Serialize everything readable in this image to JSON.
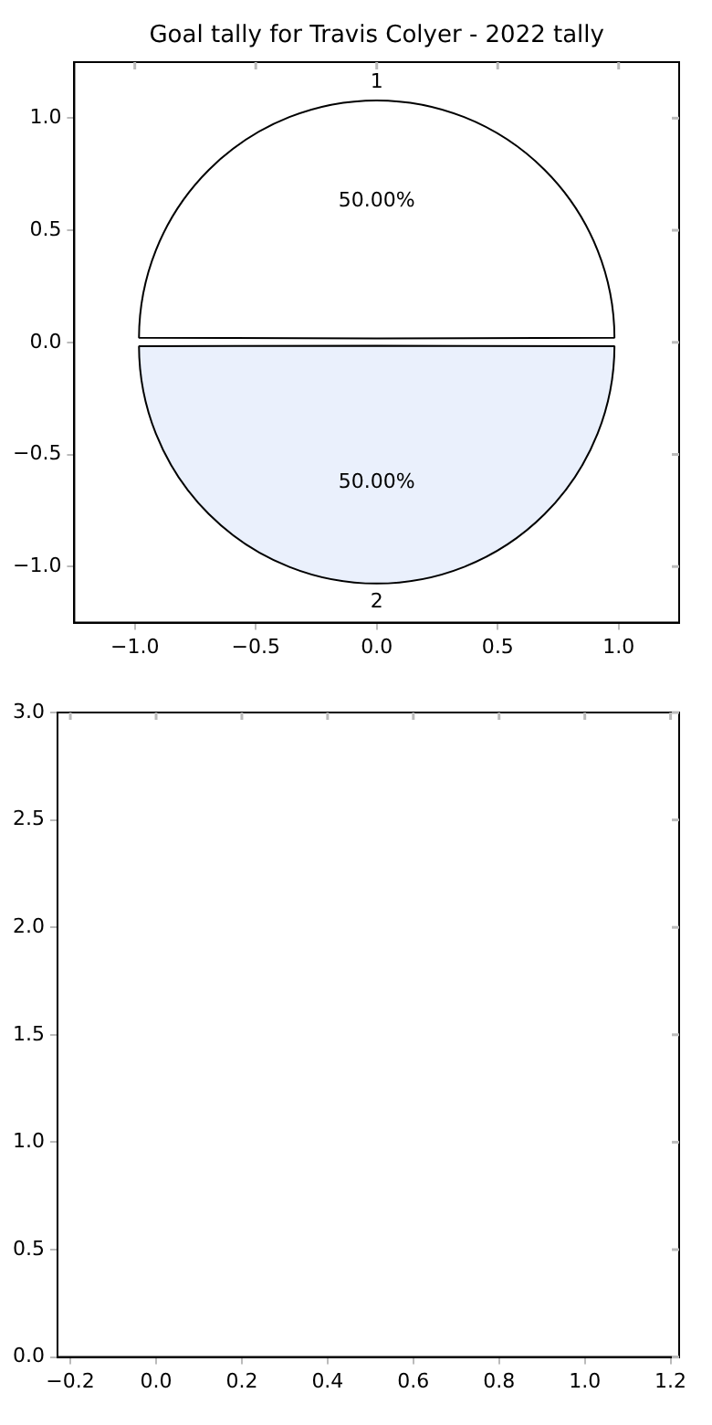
{
  "chart_data": [
    {
      "type": "pie",
      "title": "Goal tally for Travis Colyer - 2022 tally",
      "categories": [
        "1",
        "2"
      ],
      "values": [
        50,
        50
      ],
      "colors": [
        "#ffffff",
        "#eaf0fc"
      ],
      "value_labels": [
        "50.00%",
        "50.00%"
      ]
    },
    {
      "type": "scatter",
      "xlim": [
        -1.25,
        1.25
      ],
      "ylim": [
        -1.25,
        1.25
      ],
      "xticks": [
        {
          "value": -1,
          "label": "−1.0"
        },
        {
          "value": -0.5,
          "label": "−0.5"
        },
        {
          "value": 0,
          "label": "0.0"
        },
        {
          "value": 0.5,
          "label": "0.5"
        },
        {
          "value": 1,
          "label": "1.0"
        }
      ],
      "yticks": [
        {
          "value": -1,
          "label": "−1.0"
        },
        {
          "value": -0.5,
          "label": "−0.5"
        },
        {
          "value": 0,
          "label": "0.0"
        },
        {
          "value": 0.5,
          "label": "0.5"
        },
        {
          "value": 1,
          "label": "1.0"
        }
      ]
    },
    {
      "type": "scatter",
      "xlim": [
        -0.23,
        1.22
      ],
      "ylim": [
        0,
        3
      ],
      "xticks": [
        {
          "value": -0.2,
          "label": "−0.2"
        },
        {
          "value": 0,
          "label": "0.0"
        },
        {
          "value": 0.2,
          "label": "0.2"
        },
        {
          "value": 0.4,
          "label": "0.4"
        },
        {
          "value": 0.6,
          "label": "0.6"
        },
        {
          "value": 0.8,
          "label": "0.8"
        },
        {
          "value": 1,
          "label": "1.0"
        },
        {
          "value": 1.2,
          "label": "1.2"
        }
      ],
      "yticks": [
        {
          "value": 0,
          "label": "0.0"
        },
        {
          "value": 0.5,
          "label": "0.5"
        },
        {
          "value": 1,
          "label": "1.0"
        },
        {
          "value": 1.5,
          "label": "1.5"
        },
        {
          "value": 2,
          "label": "2.0"
        },
        {
          "value": 2.5,
          "label": "2.5"
        },
        {
          "value": 3,
          "label": "3.0"
        }
      ]
    }
  ]
}
